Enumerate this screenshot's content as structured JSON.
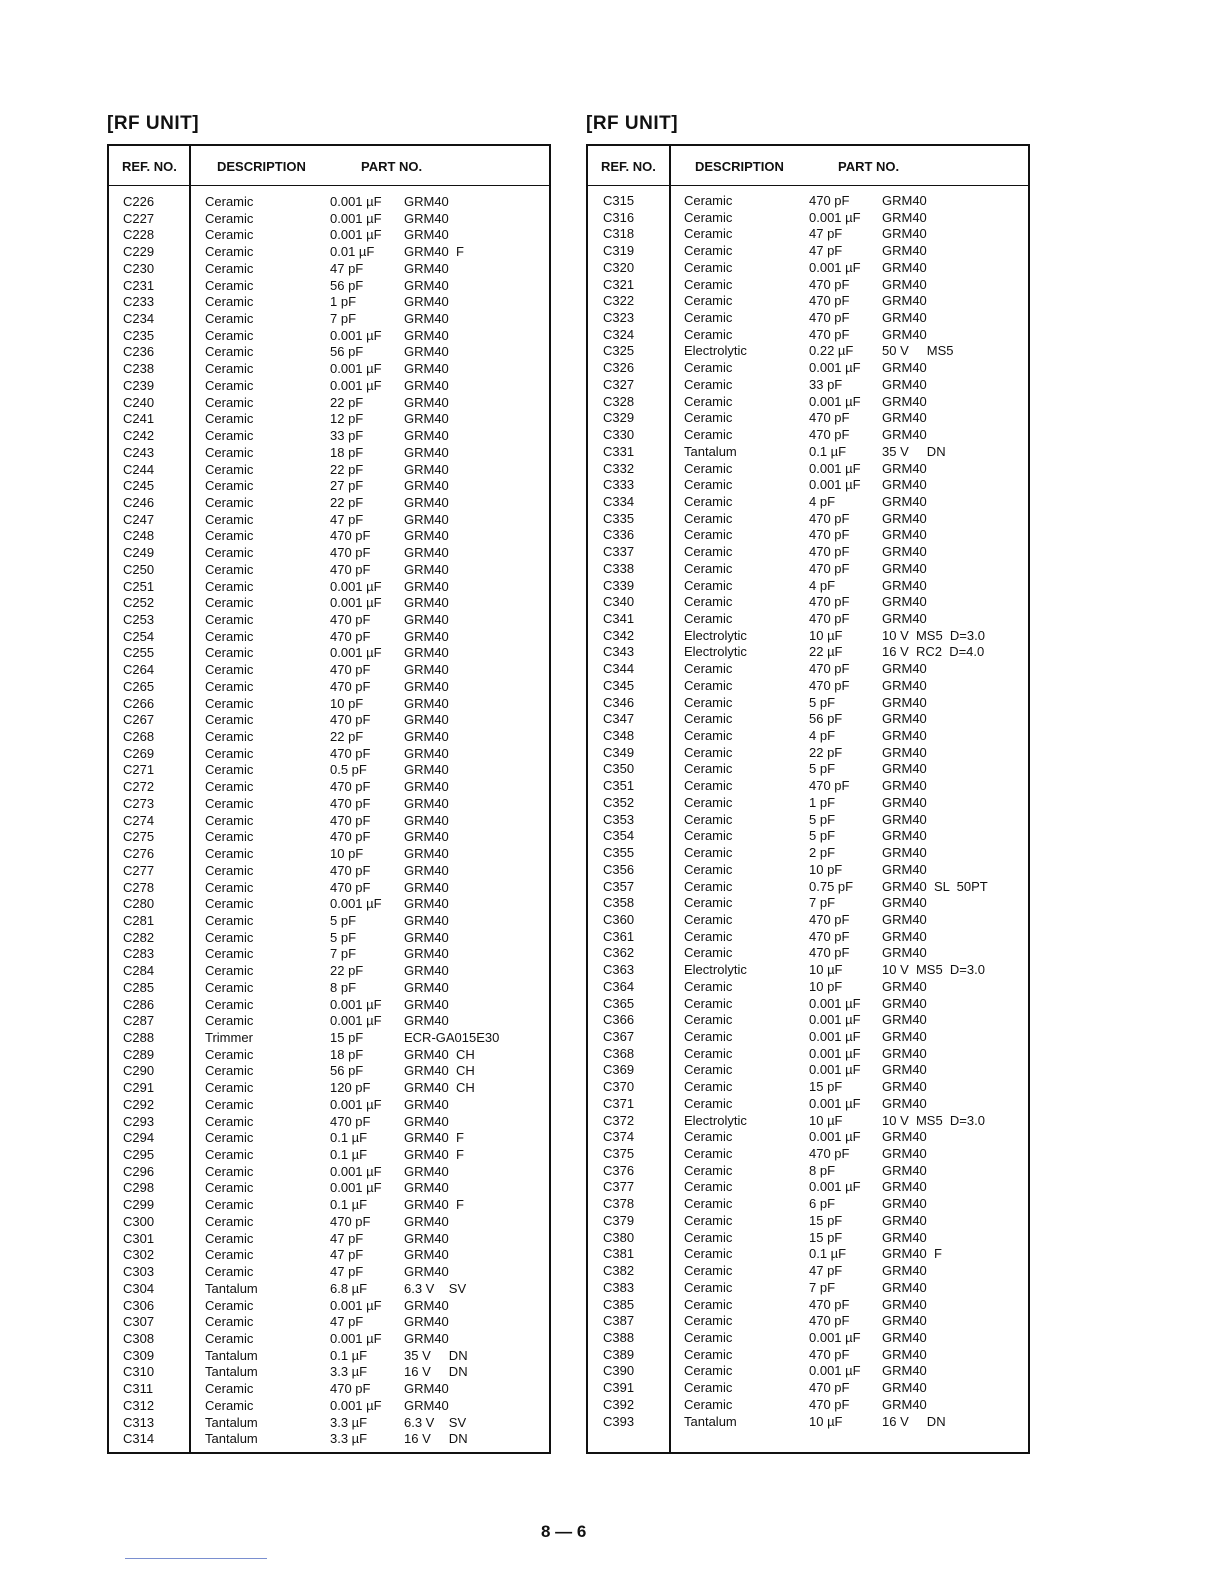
{
  "tables": [
    {
      "title": "[RF UNIT]",
      "headers": {
        "ref": "REF. NO.",
        "description": "DESCRIPTION",
        "part": "PART NO."
      },
      "rows": [
        [
          "C226",
          "Ceramic",
          "0.001 µF",
          "GRM40"
        ],
        [
          "C227",
          "Ceramic",
          "0.001 µF",
          "GRM40"
        ],
        [
          "C228",
          "Ceramic",
          "0.001 µF",
          "GRM40"
        ],
        [
          "C229",
          "Ceramic",
          "0.01 µF",
          "GRM40  F"
        ],
        [
          "C230",
          "Ceramic",
          "47 pF",
          "GRM40"
        ],
        [
          "C231",
          "Ceramic",
          "56 pF",
          "GRM40"
        ],
        [
          "C233",
          "Ceramic",
          "1 pF",
          "GRM40"
        ],
        [
          "C234",
          "Ceramic",
          "7 pF",
          "GRM40"
        ],
        [
          "C235",
          "Ceramic",
          "0.001 µF",
          "GRM40"
        ],
        [
          "C236",
          "Ceramic",
          "56 pF",
          "GRM40"
        ],
        [
          "C238",
          "Ceramic",
          "0.001 µF",
          "GRM40"
        ],
        [
          "C239",
          "Ceramic",
          "0.001 µF",
          "GRM40"
        ],
        [
          "C240",
          "Ceramic",
          "22 pF",
          "GRM40"
        ],
        [
          "C241",
          "Ceramic",
          "12 pF",
          "GRM40"
        ],
        [
          "C242",
          "Ceramic",
          "33 pF",
          "GRM40"
        ],
        [
          "C243",
          "Ceramic",
          "18 pF",
          "GRM40"
        ],
        [
          "C244",
          "Ceramic",
          "22 pF",
          "GRM40"
        ],
        [
          "C245",
          "Ceramic",
          "27 pF",
          "GRM40"
        ],
        [
          "C246",
          "Ceramic",
          "22 pF",
          "GRM40"
        ],
        [
          "C247",
          "Ceramic",
          "47 pF",
          "GRM40"
        ],
        [
          "C248",
          "Ceramic",
          "470 pF",
          "GRM40"
        ],
        [
          "C249",
          "Ceramic",
          "470 pF",
          "GRM40"
        ],
        [
          "C250",
          "Ceramic",
          "470 pF",
          "GRM40"
        ],
        [
          "C251",
          "Ceramic",
          "0.001 µF",
          "GRM40"
        ],
        [
          "C252",
          "Ceramic",
          "0.001 µF",
          "GRM40"
        ],
        [
          "C253",
          "Ceramic",
          "470 pF",
          "GRM40"
        ],
        [
          "C254",
          "Ceramic",
          "470 pF",
          "GRM40"
        ],
        [
          "C255",
          "Ceramic",
          "0.001 µF",
          "GRM40"
        ],
        [
          "C264",
          "Ceramic",
          "470 pF",
          "GRM40"
        ],
        [
          "C265",
          "Ceramic",
          "470 pF",
          "GRM40"
        ],
        [
          "C266",
          "Ceramic",
          "10 pF",
          "GRM40"
        ],
        [
          "C267",
          "Ceramic",
          "470 pF",
          "GRM40"
        ],
        [
          "C268",
          "Ceramic",
          "22 pF",
          "GRM40"
        ],
        [
          "C269",
          "Ceramic",
          "470 pF",
          "GRM40"
        ],
        [
          "C271",
          "Ceramic",
          "0.5 pF",
          "GRM40"
        ],
        [
          "C272",
          "Ceramic",
          "470 pF",
          "GRM40"
        ],
        [
          "C273",
          "Ceramic",
          "470 pF",
          "GRM40"
        ],
        [
          "C274",
          "Ceramic",
          "470 pF",
          "GRM40"
        ],
        [
          "C275",
          "Ceramic",
          "470 pF",
          "GRM40"
        ],
        [
          "C276",
          "Ceramic",
          "10 pF",
          "GRM40"
        ],
        [
          "C277",
          "Ceramic",
          "470 pF",
          "GRM40"
        ],
        [
          "C278",
          "Ceramic",
          "470 pF",
          "GRM40"
        ],
        [
          "C280",
          "Ceramic",
          "0.001 µF",
          "GRM40"
        ],
        [
          "C281",
          "Ceramic",
          "5 pF",
          "GRM40"
        ],
        [
          "C282",
          "Ceramic",
          "5 pF",
          "GRM40"
        ],
        [
          "C283",
          "Ceramic",
          "7 pF",
          "GRM40"
        ],
        [
          "C284",
          "Ceramic",
          "22 pF",
          "GRM40"
        ],
        [
          "C285",
          "Ceramic",
          "8 pF",
          "GRM40"
        ],
        [
          "C286",
          "Ceramic",
          "0.001 µF",
          "GRM40"
        ],
        [
          "C287",
          "Ceramic",
          "0.001 µF",
          "GRM40"
        ],
        [
          "C288",
          "Trimmer",
          "15 pF",
          "ECR-GA015E30"
        ],
        [
          "C289",
          "Ceramic",
          "18 pF",
          "GRM40  CH"
        ],
        [
          "C290",
          "Ceramic",
          "56 pF",
          "GRM40  CH"
        ],
        [
          "C291",
          "Ceramic",
          "120 pF",
          "GRM40  CH"
        ],
        [
          "C292",
          "Ceramic",
          "0.001 µF",
          "GRM40"
        ],
        [
          "C293",
          "Ceramic",
          "470 pF",
          "GRM40"
        ],
        [
          "C294",
          "Ceramic",
          "0.1 µF",
          "GRM40  F"
        ],
        [
          "C295",
          "Ceramic",
          "0.1 µF",
          "GRM40  F"
        ],
        [
          "C296",
          "Ceramic",
          "0.001 µF",
          "GRM40"
        ],
        [
          "C298",
          "Ceramic",
          "0.001 µF",
          "GRM40"
        ],
        [
          "C299",
          "Ceramic",
          "0.1 µF",
          "GRM40  F"
        ],
        [
          "C300",
          "Ceramic",
          "470 pF",
          "GRM40"
        ],
        [
          "C301",
          "Ceramic",
          "47 pF",
          "GRM40"
        ],
        [
          "C302",
          "Ceramic",
          "47 pF",
          "GRM40"
        ],
        [
          "C303",
          "Ceramic",
          "47 pF",
          "GRM40"
        ],
        [
          "C304",
          "Tantalum",
          "6.8 µF",
          "6.3 V    SV"
        ],
        [
          "C306",
          "Ceramic",
          "0.001 µF",
          "GRM40"
        ],
        [
          "C307",
          "Ceramic",
          "47 pF",
          "GRM40"
        ],
        [
          "C308",
          "Ceramic",
          "0.001 µF",
          "GRM40"
        ],
        [
          "C309",
          "Tantalum",
          "0.1 µF",
          "35 V     DN"
        ],
        [
          "C310",
          "Tantalum",
          "3.3 µF",
          "16 V     DN"
        ],
        [
          "C311",
          "Ceramic",
          "470 pF",
          "GRM40"
        ],
        [
          "C312",
          "Ceramic",
          "0.001 µF",
          "GRM40"
        ],
        [
          "C313",
          "Tantalum",
          "3.3 µF",
          "6.3 V    SV"
        ],
        [
          "C314",
          "Tantalum",
          "3.3 µF",
          "16 V     DN"
        ]
      ]
    },
    {
      "title": "[RF UNIT]",
      "headers": {
        "ref": "REF. NO.",
        "description": "DESCRIPTION",
        "part": "PART NO."
      },
      "rows": [
        [
          "C315",
          "Ceramic",
          "470 pF",
          "GRM40"
        ],
        [
          "C316",
          "Ceramic",
          "0.001 µF",
          "GRM40"
        ],
        [
          "C318",
          "Ceramic",
          "47 pF",
          "GRM40"
        ],
        [
          "C319",
          "Ceramic",
          "47 pF",
          "GRM40"
        ],
        [
          "C320",
          "Ceramic",
          "0.001 µF",
          "GRM40"
        ],
        [
          "C321",
          "Ceramic",
          "470 pF",
          "GRM40"
        ],
        [
          "C322",
          "Ceramic",
          "470 pF",
          "GRM40"
        ],
        [
          "C323",
          "Ceramic",
          "470 pF",
          "GRM40"
        ],
        [
          "C324",
          "Ceramic",
          "470 pF",
          "GRM40"
        ],
        [
          "C325",
          "Electrolytic",
          "0.22 µF",
          "50 V     MS5"
        ],
        [
          "C326",
          "Ceramic",
          "0.001 µF",
          "GRM40"
        ],
        [
          "C327",
          "Ceramic",
          "33 pF",
          "GRM40"
        ],
        [
          "C328",
          "Ceramic",
          "0.001 µF",
          "GRM40"
        ],
        [
          "C329",
          "Ceramic",
          "470 pF",
          "GRM40"
        ],
        [
          "C330",
          "Ceramic",
          "470 pF",
          "GRM40"
        ],
        [
          "C331",
          "Tantalum",
          "0.1 µF",
          "35 V     DN"
        ],
        [
          "C332",
          "Ceramic",
          "0.001 µF",
          "GRM40"
        ],
        [
          "C333",
          "Ceramic",
          "0.001 µF",
          "GRM40"
        ],
        [
          "C334",
          "Ceramic",
          "4 pF",
          "GRM40"
        ],
        [
          "C335",
          "Ceramic",
          "470 pF",
          "GRM40"
        ],
        [
          "C336",
          "Ceramic",
          "470 pF",
          "GRM40"
        ],
        [
          "C337",
          "Ceramic",
          "470 pF",
          "GRM40"
        ],
        [
          "C338",
          "Ceramic",
          "470 pF",
          "GRM40"
        ],
        [
          "C339",
          "Ceramic",
          "4 pF",
          "GRM40"
        ],
        [
          "C340",
          "Ceramic",
          "470 pF",
          "GRM40"
        ],
        [
          "C341",
          "Ceramic",
          "470 pF",
          "GRM40"
        ],
        [
          "C342",
          "Electrolytic",
          "10 µF",
          "10 V  MS5  D=3.0"
        ],
        [
          "C343",
          "Electrolytic",
          "22 µF",
          "16 V  RC2  D=4.0"
        ],
        [
          "C344",
          "Ceramic",
          "470 pF",
          "GRM40"
        ],
        [
          "C345",
          "Ceramic",
          "470 pF",
          "GRM40"
        ],
        [
          "C346",
          "Ceramic",
          "5 pF",
          "GRM40"
        ],
        [
          "C347",
          "Ceramic",
          "56 pF",
          "GRM40"
        ],
        [
          "C348",
          "Ceramic",
          "4 pF",
          "GRM40"
        ],
        [
          "C349",
          "Ceramic",
          "22 pF",
          "GRM40"
        ],
        [
          "C350",
          "Ceramic",
          "5 pF",
          "GRM40"
        ],
        [
          "C351",
          "Ceramic",
          "470 pF",
          "GRM40"
        ],
        [
          "C352",
          "Ceramic",
          "1 pF",
          "GRM40"
        ],
        [
          "C353",
          "Ceramic",
          "5 pF",
          "GRM40"
        ],
        [
          "C354",
          "Ceramic",
          "5 pF",
          "GRM40"
        ],
        [
          "C355",
          "Ceramic",
          "2 pF",
          "GRM40"
        ],
        [
          "C356",
          "Ceramic",
          "10 pF",
          "GRM40"
        ],
        [
          "C357",
          "Ceramic",
          "0.75 pF",
          "GRM40  SL  50PT"
        ],
        [
          "C358",
          "Ceramic",
          "7 pF",
          "GRM40"
        ],
        [
          "C360",
          "Ceramic",
          "470 pF",
          "GRM40"
        ],
        [
          "C361",
          "Ceramic",
          "470 pF",
          "GRM40"
        ],
        [
          "C362",
          "Ceramic",
          "470 pF",
          "GRM40"
        ],
        [
          "C363",
          "Electrolytic",
          "10 µF",
          "10 V  MS5  D=3.0"
        ],
        [
          "C364",
          "Ceramic",
          "10 pF",
          "GRM40"
        ],
        [
          "C365",
          "Ceramic",
          "0.001 µF",
          "GRM40"
        ],
        [
          "C366",
          "Ceramic",
          "0.001 µF",
          "GRM40"
        ],
        [
          "C367",
          "Ceramic",
          "0.001 µF",
          "GRM40"
        ],
        [
          "C368",
          "Ceramic",
          "0.001 µF",
          "GRM40"
        ],
        [
          "C369",
          "Ceramic",
          "0.001 µF",
          "GRM40"
        ],
        [
          "C370",
          "Ceramic",
          "15 pF",
          "GRM40"
        ],
        [
          "C371",
          "Ceramic",
          "0.001 µF",
          "GRM40"
        ],
        [
          "C372",
          "Electrolytic",
          "10 µF",
          "10 V  MS5  D=3.0"
        ],
        [
          "C374",
          "Ceramic",
          "0.001 µF",
          "GRM40"
        ],
        [
          "C375",
          "Ceramic",
          "470 pF",
          "GRM40"
        ],
        [
          "C376",
          "Ceramic",
          "8 pF",
          "GRM40"
        ],
        [
          "C377",
          "Ceramic",
          "0.001 µF",
          "GRM40"
        ],
        [
          "C378",
          "Ceramic",
          "6 pF",
          "GRM40"
        ],
        [
          "C379",
          "Ceramic",
          "15 pF",
          "GRM40"
        ],
        [
          "C380",
          "Ceramic",
          "15 pF",
          "GRM40"
        ],
        [
          "C381",
          "Ceramic",
          "0.1 µF",
          "GRM40  F"
        ],
        [
          "C382",
          "Ceramic",
          "47 pF",
          "GRM40"
        ],
        [
          "C383",
          "Ceramic",
          "7 pF",
          "GRM40"
        ],
        [
          "C385",
          "Ceramic",
          "470 pF",
          "GRM40"
        ],
        [
          "C387",
          "Ceramic",
          "470 pF",
          "GRM40"
        ],
        [
          "C388",
          "Ceramic",
          "0.001 µF",
          "GRM40"
        ],
        [
          "C389",
          "Ceramic",
          "470 pF",
          "GRM40"
        ],
        [
          "C390",
          "Ceramic",
          "0.001 µF",
          "GRM40"
        ],
        [
          "C391",
          "Ceramic",
          "470 pF",
          "GRM40"
        ],
        [
          "C392",
          "Ceramic",
          "470 pF",
          "GRM40"
        ],
        [
          "C393",
          "Tantalum",
          "10 µF",
          "16 V     DN"
        ]
      ]
    }
  ],
  "footer": {
    "page_number": "8 — 6"
  }
}
